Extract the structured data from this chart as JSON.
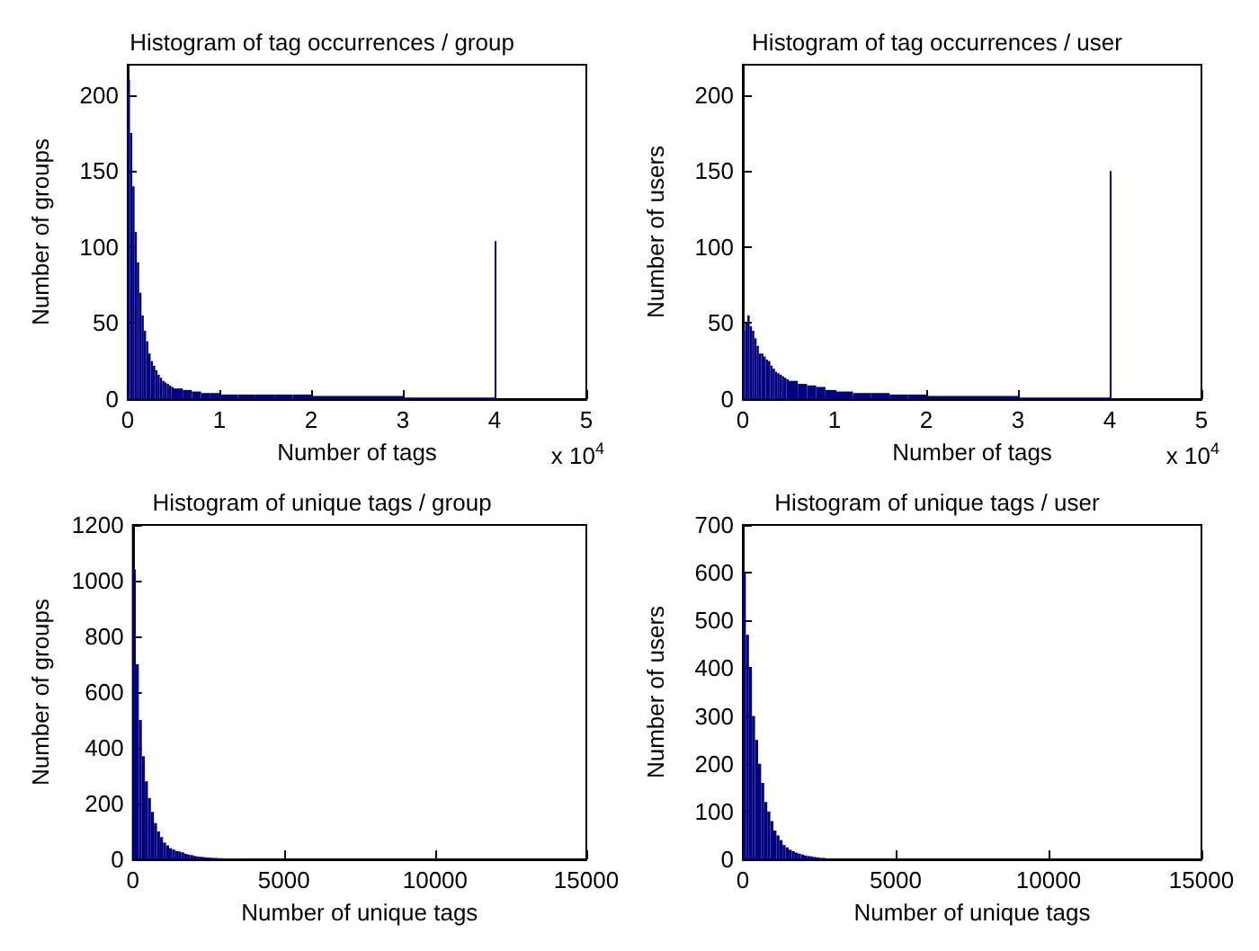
{
  "chart_data": [
    {
      "type": "histogram",
      "title": "Histogram of tag occurrences / group",
      "xlabel": "Number of tags",
      "ylabel": "Number of groups",
      "color": "#00007f",
      "annotations": [
        "x 10$^{4}$"
      ],
      "bins": [
        0,
        0.025,
        0.05,
        0.075,
        0.1,
        0.125,
        0.15,
        0.175,
        0.2,
        0.225,
        0.25,
        0.275,
        0.3,
        0.325,
        0.35,
        0.375,
        0.4,
        0.425,
        0.45,
        0.475,
        0.5,
        0.6,
        0.7,
        0.8,
        0.9,
        1,
        1.2,
        1.4,
        1.6,
        1.8,
        2,
        2.5,
        3,
        3.5,
        4,
        4.015
      ],
      "values": [
        210,
        175,
        140,
        110,
        90,
        70,
        55,
        45,
        38,
        30,
        25,
        22,
        19,
        16,
        14,
        12,
        11,
        10,
        9,
        8,
        7,
        6,
        5,
        4,
        4,
        3,
        3,
        3,
        3,
        3,
        2,
        2,
        1,
        1,
        104
      ],
      "xlim": [
        0,
        5
      ],
      "xticks": [
        0,
        1,
        2,
        3,
        4,
        5
      ],
      "ylim": [
        0,
        220
      ],
      "yticks": [
        0,
        50,
        100,
        150,
        200
      ],
      "grid": false
    },
    {
      "type": "histogram",
      "title": "Histogram of tag occurrences / user",
      "xlabel": "Number of tags",
      "ylabel": "Number of users",
      "color": "#00007f",
      "annotations": [
        "x 10$^{4}$"
      ],
      "bins": [
        0,
        0.025,
        0.05,
        0.075,
        0.1,
        0.125,
        0.15,
        0.175,
        0.2,
        0.225,
        0.25,
        0.275,
        0.3,
        0.325,
        0.35,
        0.375,
        0.4,
        0.425,
        0.45,
        0.475,
        0.5,
        0.6,
        0.7,
        0.8,
        0.9,
        1,
        1.2,
        1.4,
        1.6,
        1.8,
        2,
        2.5,
        3,
        3.5,
        4,
        4.015
      ],
      "values": [
        45,
        50,
        55,
        48,
        45,
        40,
        35,
        30,
        30,
        28,
        26,
        25,
        22,
        20,
        18,
        17,
        16,
        15,
        14,
        13,
        12,
        10,
        9,
        8,
        6,
        5,
        4,
        4,
        3,
        3,
        2,
        2,
        1,
        1,
        150
      ],
      "xlim": [
        0,
        5
      ],
      "xticks": [
        0,
        1,
        2,
        3,
        4,
        5
      ],
      "ylim": [
        0,
        220
      ],
      "yticks": [
        0,
        50,
        100,
        150,
        200
      ],
      "grid": false
    },
    {
      "type": "histogram",
      "title": "Histogram of unique tags / group",
      "xlabel": "Number of unique tags",
      "ylabel": "Number of groups",
      "color": "#00007f",
      "bins": [
        0,
        100,
        200,
        300,
        400,
        500,
        600,
        700,
        800,
        900,
        1000,
        1100,
        1200,
        1300,
        1400,
        1500,
        1600,
        1700,
        1800,
        1900,
        2000,
        2100,
        2200,
        2300,
        2400,
        2500,
        2600,
        2700,
        2800,
        2900,
        3000,
        3500,
        4000
      ],
      "values": [
        1040,
        700,
        500,
        370,
        280,
        220,
        170,
        130,
        100,
        80,
        60,
        50,
        40,
        35,
        30,
        28,
        25,
        20,
        17,
        15,
        12,
        10,
        9,
        8,
        7,
        6,
        5,
        5,
        4,
        4,
        3,
        2
      ],
      "xlim": [
        0,
        15000
      ],
      "xticks": [
        0,
        5000,
        10000,
        15000
      ],
      "ylim": [
        0,
        1200
      ],
      "yticks": [
        0,
        200,
        400,
        600,
        800,
        1000,
        1200
      ],
      "grid": false
    },
    {
      "type": "histogram",
      "title": "Histogram of unique tags / user",
      "xlabel": "Number of unique tags",
      "ylabel": "Number of users",
      "color": "#00007f",
      "bins": [
        0,
        100,
        200,
        300,
        400,
        500,
        600,
        700,
        800,
        900,
        1000,
        1100,
        1200,
        1300,
        1400,
        1500,
        1600,
        1700,
        1800,
        1900,
        2000,
        2100,
        2200,
        2300,
        2400,
        2500,
        2600,
        2700,
        2800,
        2900,
        3000,
        3500,
        4000,
        4500
      ],
      "values": [
        600,
        470,
        400,
        300,
        250,
        200,
        160,
        120,
        100,
        80,
        60,
        50,
        40,
        30,
        25,
        20,
        17,
        14,
        12,
        10,
        8,
        7,
        6,
        5,
        4,
        3,
        3,
        null,
        2,
        null,
        1,
        1,
        1
      ],
      "xlim": [
        0,
        15000
      ],
      "xticks": [
        0,
        5000,
        10000,
        15000
      ],
      "ylim": [
        0,
        700
      ],
      "yticks": [
        0,
        100,
        200,
        300,
        400,
        500,
        600,
        700
      ],
      "grid": false
    }
  ]
}
